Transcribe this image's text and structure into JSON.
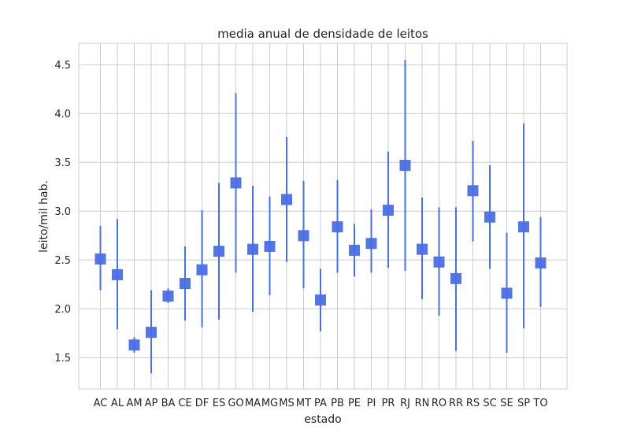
{
  "chart_data": {
    "type": "errorbar",
    "title": "media anual de densidade de leitos",
    "xlabel": "estado",
    "ylabel": "leito/mil hab.",
    "ylim": [
      1.18,
      4.72
    ],
    "yticks": [
      1.5,
      2.0,
      2.5,
      3.0,
      3.5,
      4.0,
      4.5
    ],
    "ytick_labels": [
      "1.5",
      "2.0",
      "2.5",
      "3.0",
      "3.5",
      "4.0",
      "4.5"
    ],
    "grid": true,
    "marker_color": "#4a6fe3",
    "categories": [
      "AC",
      "AL",
      "AM",
      "AP",
      "BA",
      "CE",
      "DF",
      "ES",
      "GO",
      "MA",
      "MG",
      "MS",
      "MT",
      "PA",
      "PB",
      "PE",
      "PI",
      "PR",
      "RJ",
      "RN",
      "RO",
      "RR",
      "RS",
      "SC",
      "SE",
      "SP",
      "TO"
    ],
    "values": [
      2.51,
      2.35,
      1.63,
      1.76,
      2.13,
      2.26,
      2.4,
      2.59,
      3.29,
      2.61,
      2.64,
      3.12,
      2.75,
      2.09,
      2.84,
      2.6,
      2.67,
      3.01,
      3.47,
      2.61,
      2.48,
      2.31,
      3.21,
      2.94,
      2.16,
      2.84,
      2.47
    ],
    "lower": [
      2.19,
      1.79,
      1.55,
      1.34,
      2.06,
      1.88,
      1.81,
      1.89,
      2.37,
      1.97,
      2.14,
      2.48,
      2.21,
      1.77,
      2.37,
      2.33,
      2.37,
      2.42,
      2.39,
      2.1,
      1.93,
      1.57,
      2.69,
      2.41,
      1.55,
      1.8,
      2.02
    ],
    "upper": [
      2.85,
      2.92,
      1.71,
      2.19,
      2.21,
      2.64,
      3.01,
      3.29,
      4.21,
      3.26,
      3.15,
      3.76,
      3.31,
      2.41,
      3.32,
      2.87,
      3.02,
      3.61,
      4.55,
      3.14,
      3.04,
      3.04,
      3.72,
      3.47,
      2.78,
      3.9,
      2.94
    ]
  }
}
